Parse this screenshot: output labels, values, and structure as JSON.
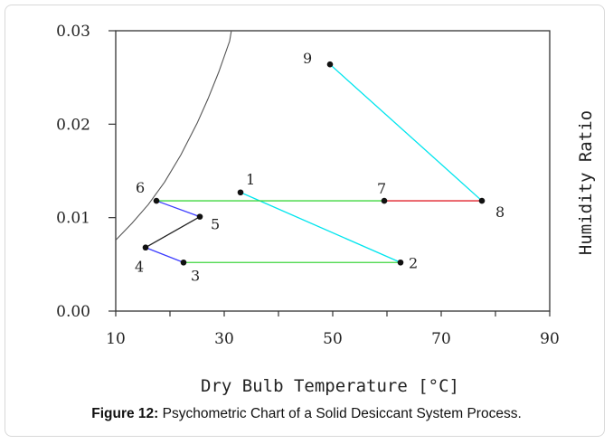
{
  "chart_data": {
    "type": "scatter",
    "title": "",
    "xlabel": "Dry Bulb Temperature [°C]",
    "ylabel": "Humidity Ratio",
    "xlim": [
      10,
      90
    ],
    "ylim": [
      0,
      0.03
    ],
    "x_ticks": [
      "10",
      "30",
      "50",
      "70",
      "90"
    ],
    "y_ticks": [
      "0.00",
      "0.01",
      "0.02",
      "0.03"
    ],
    "grid": false,
    "points": [
      {
        "label": "1",
        "x": 33.0,
        "y": 0.0127
      },
      {
        "label": "2",
        "x": 62.5,
        "y": 0.0052
      },
      {
        "label": "3",
        "x": 22.5,
        "y": 0.0052
      },
      {
        "label": "4",
        "x": 15.5,
        "y": 0.0068
      },
      {
        "label": "5",
        "x": 25.5,
        "y": 0.0101
      },
      {
        "label": "6",
        "x": 17.5,
        "y": 0.0118
      },
      {
        "label": "7",
        "x": 59.5,
        "y": 0.0118
      },
      {
        "label": "8",
        "x": 77.5,
        "y": 0.0118
      },
      {
        "label": "9",
        "x": 49.5,
        "y": 0.0264
      }
    ],
    "segments": [
      {
        "from": "1",
        "to": "2",
        "color": "#00e5ee"
      },
      {
        "from": "3",
        "to": "2",
        "color": "#3fd63f"
      },
      {
        "from": "3",
        "to": "4",
        "color": "#3c3cff"
      },
      {
        "from": "4",
        "to": "5",
        "color": "#222222"
      },
      {
        "from": "5",
        "to": "6",
        "color": "#3c3cff"
      },
      {
        "from": "6",
        "to": "7",
        "color": "#3fd63f"
      },
      {
        "from": "7",
        "to": "8",
        "color": "#e0202a"
      },
      {
        "from": "8",
        "to": "9",
        "color": "#00e5ee"
      }
    ],
    "saturation_curve": {
      "color": "#555555",
      "points": [
        [
          10,
          0.0076
        ],
        [
          13,
          0.0094
        ],
        [
          16,
          0.0114
        ],
        [
          19,
          0.0138
        ],
        [
          22,
          0.0167
        ],
        [
          25,
          0.0201
        ],
        [
          27,
          0.0227
        ],
        [
          29,
          0.0256
        ],
        [
          31,
          0.0289
        ],
        [
          31.6,
          0.031
        ]
      ]
    }
  },
  "caption": {
    "label": "Figure 12:",
    "text": " Psychometric Chart of a Solid Desiccant System Process."
  }
}
